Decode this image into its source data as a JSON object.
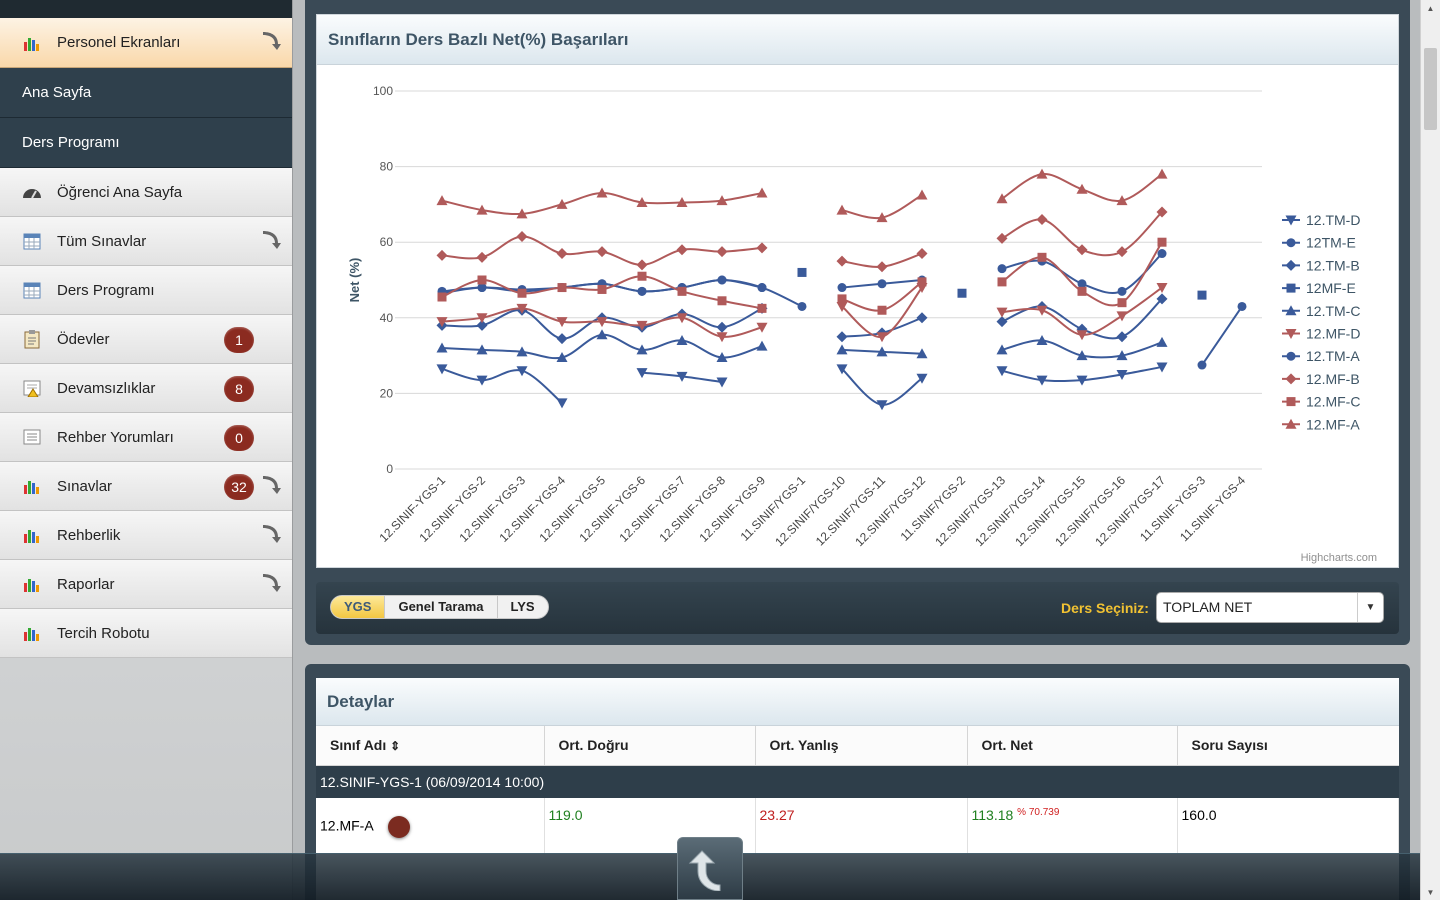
{
  "sidebar": {
    "items": [
      {
        "label": "Personel Ekranları",
        "icon": "bar-chart-icon",
        "style": "active",
        "arrow": true
      },
      {
        "label": "Ana Sayfa",
        "style": "dark"
      },
      {
        "label": "Ders Programı",
        "style": "dark"
      },
      {
        "label": "Öğrenci Ana Sayfa",
        "icon": "dashboard-icon"
      },
      {
        "label": "Tüm Sınavlar",
        "icon": "calendar-icon",
        "arrow": true
      },
      {
        "label": "Ders Programı",
        "icon": "calendar-icon"
      },
      {
        "label": "Ödevler",
        "icon": "clipboard-icon",
        "badge": "1"
      },
      {
        "label": "Devamsızlıklar",
        "icon": "warning-doc-icon",
        "badge": "8"
      },
      {
        "label": "Rehber Yorumları",
        "icon": "list-icon",
        "badge": "0"
      },
      {
        "label": "Sınavlar",
        "icon": "bar-chart-icon",
        "badge": "32",
        "arrow": true
      },
      {
        "label": "Rehberlik",
        "icon": "bar-chart-icon",
        "arrow": true
      },
      {
        "label": "Raporlar",
        "icon": "bar-chart-icon",
        "arrow": true
      },
      {
        "label": "Tercih Robotu",
        "icon": "bar-chart-icon"
      }
    ]
  },
  "chart_panel": {
    "title": "Sınıfların Ders Bazlı Net(%) Başarıları",
    "credit": "Highcharts.com"
  },
  "filter": {
    "tabs": [
      "YGS",
      "Genel Tarama",
      "LYS"
    ],
    "active_tab": "YGS",
    "ders_label": "Ders Seçiniz:",
    "ders_value": "TOPLAM NET"
  },
  "details": {
    "title": "Detaylar",
    "columns": [
      "Sınıf Adı",
      "Ort. Doğru",
      "Ort. Yanlış",
      "Ort. Net",
      "Soru Sayısı"
    ],
    "sort_icon": "⇕",
    "group": "12.SINIF-YGS-1 (06/09/2014 10:00)",
    "row": {
      "sinif": "12.MF-A",
      "dogru": "119.0",
      "yanlis": "23.27",
      "net": "113.18",
      "net_pct": "% 70.739",
      "soru": "160.0"
    }
  },
  "colors": {
    "blue": "#3a5a9a",
    "red": "#b05a5a",
    "accent": "#f3c742"
  },
  "chart_data": {
    "type": "line",
    "ylabel": "Net (%)",
    "ylim": [
      0,
      100
    ],
    "yticks": [
      0,
      20,
      40,
      60,
      80,
      100
    ],
    "categories": [
      "12.SINIF-YGS-1",
      "12.SINIF-YGS-2",
      "12.SINIF-YGS-3",
      "12.SINIF-YGS-4",
      "12.SINIF-YGS-5",
      "12.SINIF-YGS-6",
      "12.SINIF-YGS-7",
      "12.SINIF-YGS-8",
      "12.SINIF-YGS-9",
      "11.SINIF/YGS-1",
      "12.SINIF/YGS-10",
      "12.SINIF/YGS-11",
      "12.SINIF/YGS-12",
      "11.SINIF/YGS-2",
      "12.SINIF/YGS-13",
      "12.SINIF/YGS-14",
      "12.SINIF/YGS-15",
      "12.SINIF/YGS-16",
      "12.SINIF/YGS-17",
      "11.SINIF-YGS-3",
      "11.SINIF-YGS-4"
    ],
    "legend_position": "right",
    "series": [
      {
        "name": "12.TM-D",
        "color": "#3a5a9a",
        "marker": "triangle-down",
        "values": [
          26.5,
          23.5,
          26,
          17.5,
          null,
          25.5,
          24.5,
          23,
          null,
          null,
          26.5,
          17,
          24,
          null,
          26,
          23.5,
          23.5,
          25,
          27,
          null,
          null
        ]
      },
      {
        "name": "12TM-E",
        "color": "#3a5a9a",
        "marker": "circle",
        "values": [
          47,
          48,
          47.5,
          48,
          49,
          47,
          48,
          50,
          48,
          43,
          null,
          null,
          null,
          null,
          null,
          null,
          null,
          null,
          null,
          27.5,
          43
        ]
      },
      {
        "name": "12.TM-B",
        "color": "#3a5a9a",
        "marker": "diamond",
        "values": [
          38,
          38,
          42,
          34.5,
          40,
          37.5,
          41,
          37.5,
          42.5,
          null,
          35,
          36,
          40,
          null,
          39,
          43,
          37,
          35,
          45,
          null,
          null
        ]
      },
      {
        "name": "12MF-E",
        "color": "#3a5a9a",
        "marker": "square",
        "values": [
          null,
          null,
          null,
          null,
          null,
          null,
          null,
          null,
          null,
          52,
          null,
          null,
          null,
          46.5,
          null,
          null,
          null,
          null,
          null,
          46,
          null
        ]
      },
      {
        "name": "12.TM-C",
        "color": "#3a5a9a",
        "marker": "triangle",
        "values": [
          32,
          31.5,
          31,
          29.5,
          35.5,
          31.5,
          34,
          29.5,
          32.5,
          null,
          31.5,
          31,
          30.5,
          null,
          31.5,
          34,
          30,
          30,
          33.5,
          null,
          null
        ]
      },
      {
        "name": "12.MF-D",
        "color": "#b05a5a",
        "marker": "triangle-down",
        "values": [
          39,
          40,
          42.5,
          39,
          39,
          38,
          40,
          35,
          37.5,
          null,
          43,
          35,
          48,
          null,
          41.5,
          42,
          35.5,
          40.5,
          48,
          null,
          null
        ]
      },
      {
        "name": "12.TM-A",
        "color": "#3a5a9a",
        "marker": "circle",
        "values": [
          46.5,
          48,
          47,
          48,
          49,
          47,
          48,
          50,
          48,
          null,
          48,
          49,
          50,
          null,
          53,
          55,
          49,
          47,
          57,
          null,
          null
        ]
      },
      {
        "name": "12.MF-B",
        "color": "#b05a5a",
        "marker": "diamond",
        "values": [
          56.5,
          56,
          61.5,
          57,
          57.5,
          54,
          58,
          57.5,
          58.5,
          null,
          55,
          53.5,
          57,
          null,
          61,
          66,
          58,
          57.5,
          68,
          null,
          null
        ]
      },
      {
        "name": "12.MF-C",
        "color": "#b05a5a",
        "marker": "square",
        "values": [
          45.5,
          50,
          46.5,
          48,
          47.5,
          51,
          47,
          44.5,
          42.5,
          null,
          45,
          42,
          49.5,
          null,
          49.5,
          56,
          47,
          44,
          60,
          null,
          null
        ]
      },
      {
        "name": "12.MF-A",
        "color": "#b05a5a",
        "marker": "triangle",
        "values": [
          71,
          68.5,
          67.5,
          70,
          73,
          70.5,
          70.5,
          71,
          73,
          null,
          68.5,
          66.5,
          72.5,
          null,
          71.5,
          78,
          74,
          71,
          78,
          null,
          null
        ]
      }
    ]
  }
}
